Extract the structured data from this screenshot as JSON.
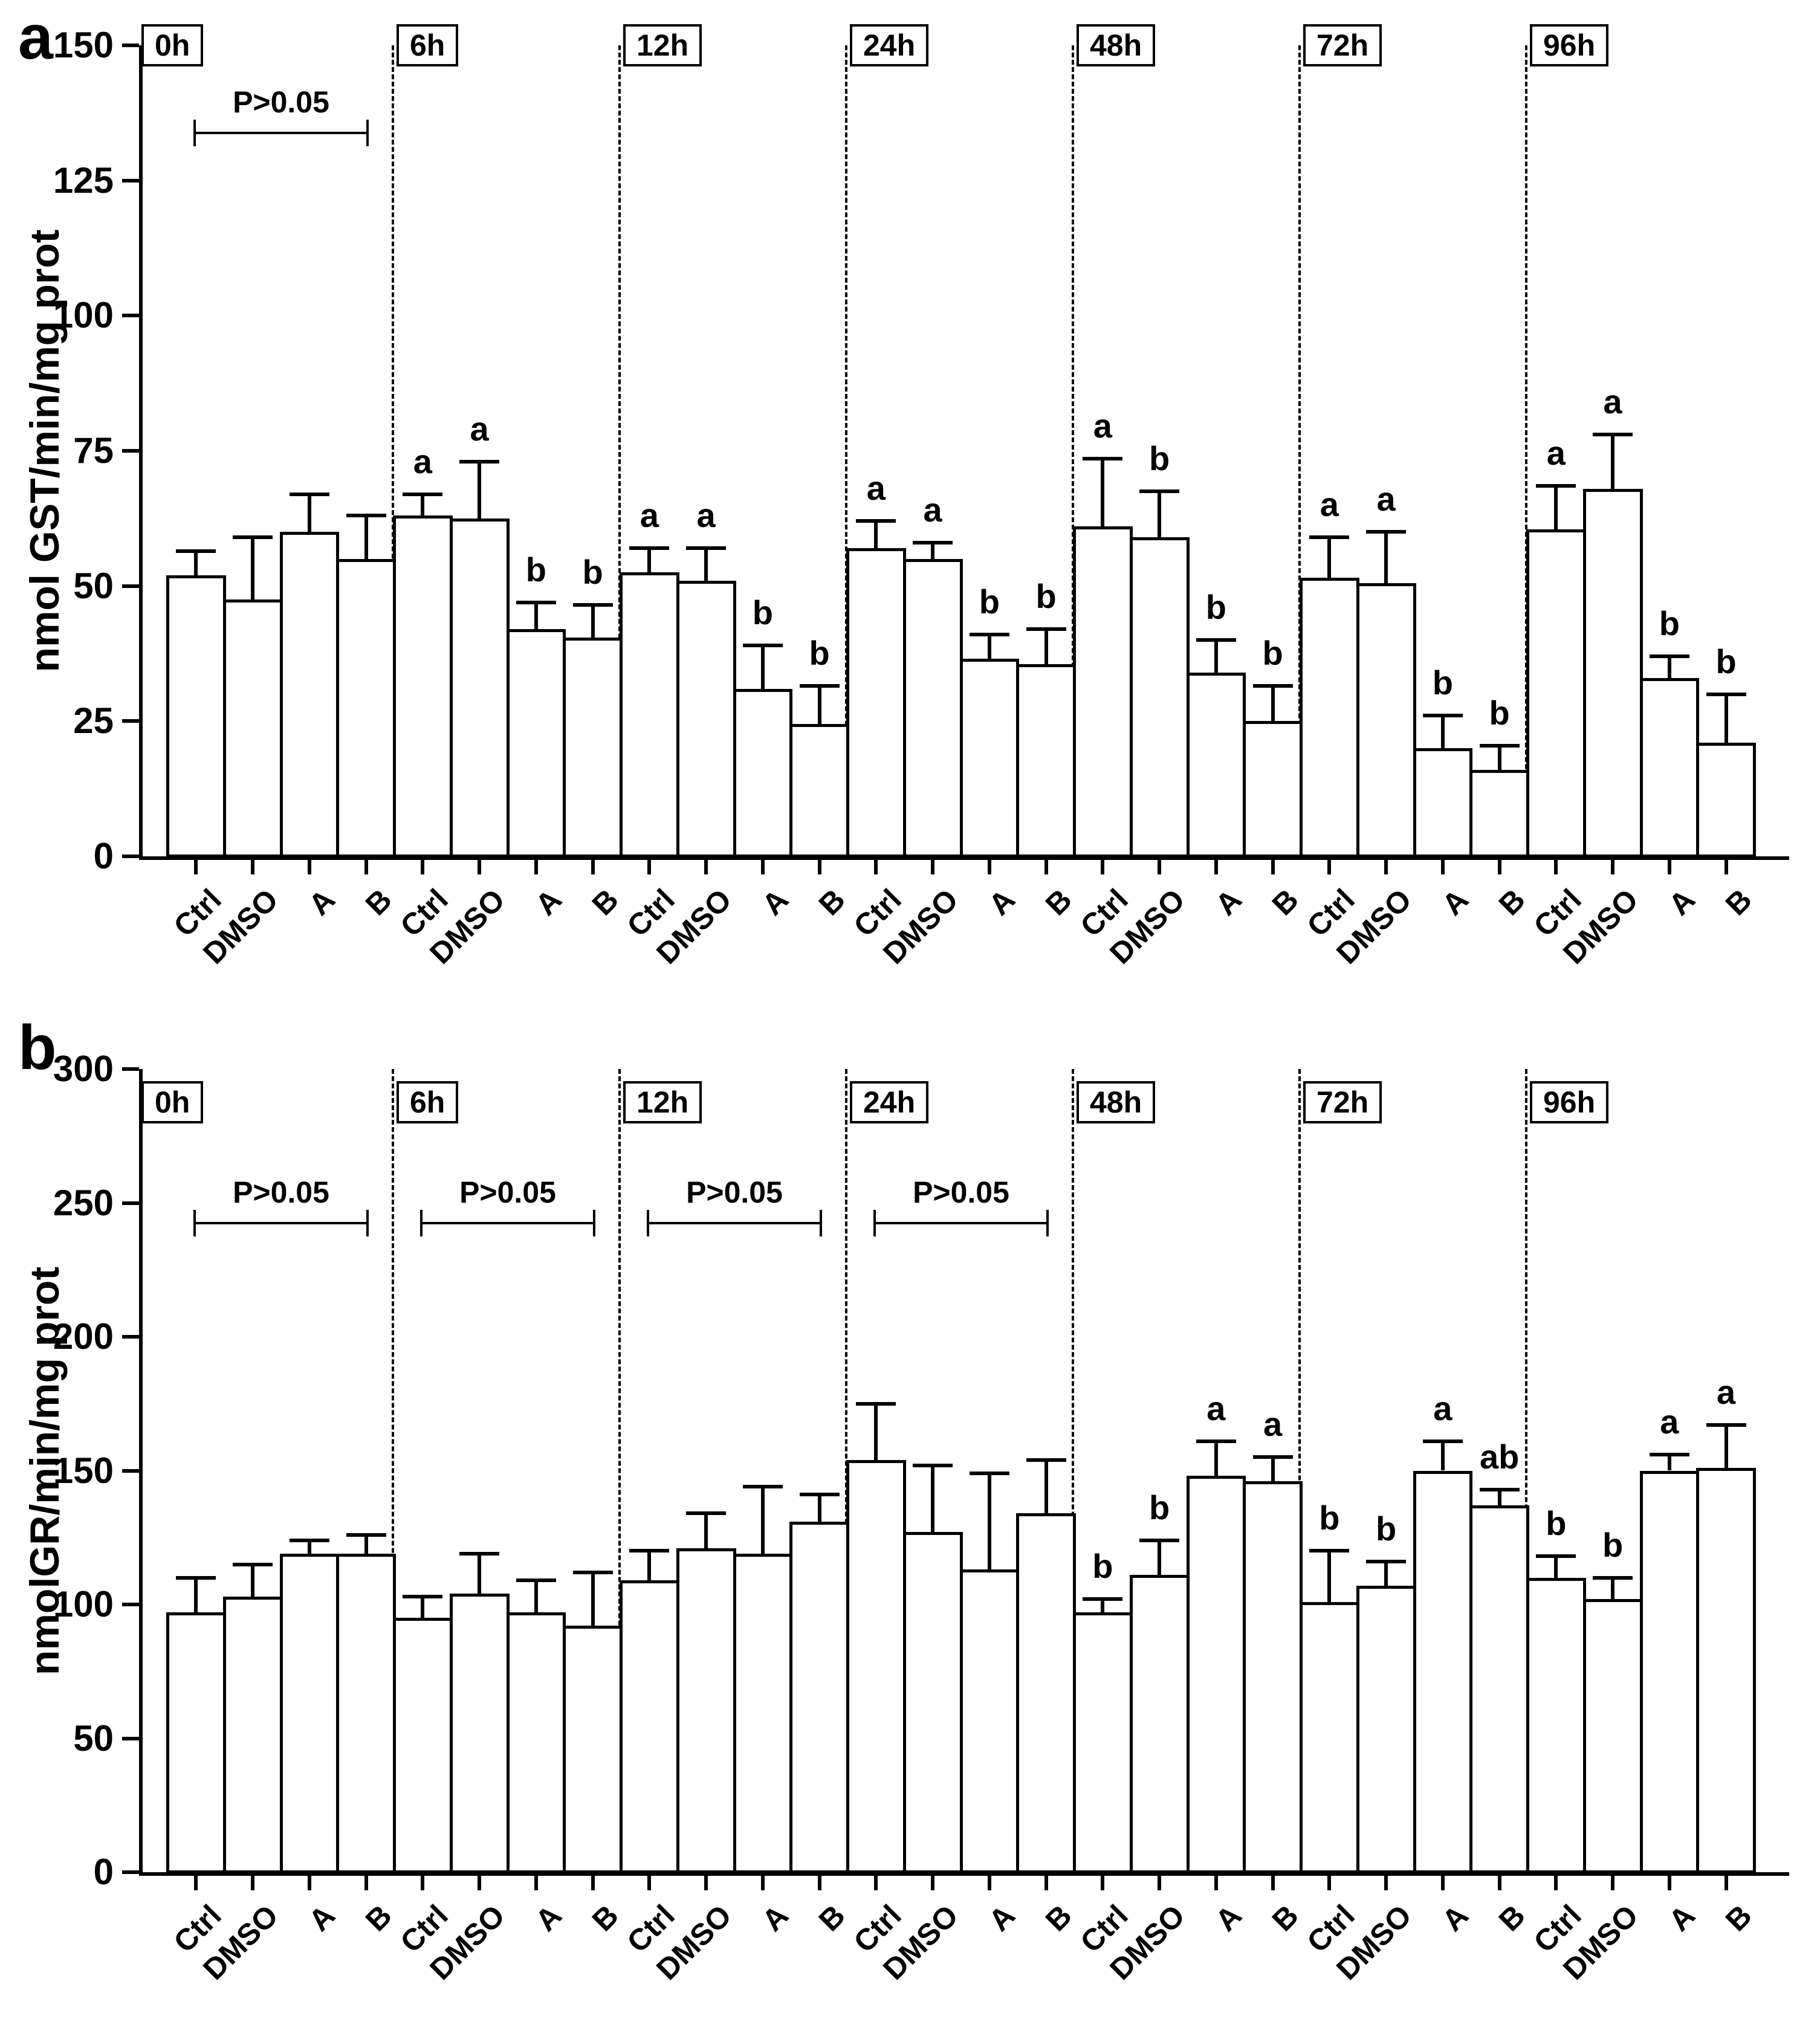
{
  "figure": {
    "panel_a_label": "a",
    "panel_b_label": "b",
    "colors": {
      "bar_fill": "#ffffff",
      "bar_border": "#000000",
      "background": "#ffffff"
    }
  },
  "chart_data": [
    {
      "type": "bar",
      "panel": "a",
      "title": "",
      "xlabel": "",
      "ylabel": "nmol GST/min/mg prot",
      "ylim": [
        0,
        150
      ],
      "yticks": [
        0,
        25,
        50,
        75,
        100,
        125,
        150
      ],
      "grid": false,
      "legend": "none",
      "group_labels": [
        "0h",
        "6h",
        "12h",
        "24h",
        "48h",
        "72h",
        "96h"
      ],
      "bar_labels": [
        "Ctrl",
        "DMSO",
        "A",
        "B"
      ],
      "series_note": "values are group-major: one array of 4 bars (Ctrl, DMSO, A, B) per time group",
      "values": [
        [
          52,
          47.5,
          60,
          55
        ],
        [
          63,
          62.5,
          42,
          40.5
        ],
        [
          52.5,
          51,
          31,
          24.5
        ],
        [
          57,
          55,
          36.5,
          35.5
        ],
        [
          61,
          59,
          34,
          25
        ],
        [
          51.5,
          50.5,
          20,
          16
        ],
        [
          60.5,
          68,
          33,
          21
        ]
      ],
      "errors_upper": [
        [
          4.5,
          11.5,
          7,
          8
        ],
        [
          4,
          10.5,
          5,
          6
        ],
        [
          4.5,
          6,
          8,
          7
        ],
        [
          5,
          3,
          4.5,
          6.5
        ],
        [
          12.5,
          8.5,
          6,
          6.5
        ],
        [
          7.5,
          9.5,
          6,
          4.5
        ],
        [
          8,
          10,
          4,
          9
        ]
      ],
      "letters": [
        [
          "",
          "",
          "",
          ""
        ],
        [
          "a",
          "a",
          "b",
          "b"
        ],
        [
          "a",
          "a",
          "b",
          "b"
        ],
        [
          "a",
          "a",
          "b",
          "b"
        ],
        [
          "a",
          "b",
          "b",
          "b"
        ],
        [
          "a",
          "a",
          "b",
          "b"
        ],
        [
          "a",
          "a",
          "b",
          "b"
        ]
      ],
      "brackets": [
        {
          "group_index": 0,
          "label": "P>0.05",
          "y_value": 134
        }
      ]
    },
    {
      "type": "bar",
      "panel": "b",
      "title": "",
      "xlabel": "",
      "ylabel": "nmolGR/min/mg prot",
      "ylim": [
        0,
        300
      ],
      "yticks": [
        0,
        50,
        100,
        150,
        200,
        250,
        300
      ],
      "grid": false,
      "legend": "none",
      "group_labels": [
        "0h",
        "6h",
        "12h",
        "24h",
        "48h",
        "72h",
        "96h"
      ],
      "bar_labels": [
        "Ctrl",
        "DMSO",
        "A",
        "B"
      ],
      "series_note": "values are group-major: one array of 4 bars (Ctrl, DMSO, A, B) per time group",
      "values": [
        [
          97,
          103,
          119,
          119
        ],
        [
          95,
          104,
          97,
          92
        ],
        [
          109,
          121,
          119,
          131
        ],
        [
          154,
          127,
          113,
          134
        ],
        [
          97,
          111,
          148,
          146
        ],
        [
          101,
          107,
          150,
          137
        ],
        [
          110,
          102,
          150,
          151
        ]
      ],
      "errors_upper": [
        [
          13,
          12,
          5,
          7
        ],
        [
          8,
          15,
          12,
          20
        ],
        [
          11,
          13,
          25,
          10
        ],
        [
          21,
          25,
          36,
          20
        ],
        [
          5,
          13,
          13,
          9
        ],
        [
          19,
          9,
          11,
          6
        ],
        [
          8,
          8,
          6,
          16
        ]
      ],
      "letters": [
        [
          "",
          "",
          "",
          ""
        ],
        [
          "",
          "",
          "",
          ""
        ],
        [
          "",
          "",
          "",
          ""
        ],
        [
          "",
          "",
          "",
          ""
        ],
        [
          "b",
          "b",
          "a",
          "a"
        ],
        [
          "b",
          "b",
          "a",
          "ab"
        ],
        [
          "b",
          "b",
          "a",
          "a"
        ]
      ],
      "brackets": [
        {
          "group_index": 0,
          "label": "P>0.05",
          "y_value": 243
        },
        {
          "group_index": 1,
          "label": "P>0.05",
          "y_value": 243
        },
        {
          "group_index": 2,
          "label": "P>0.05",
          "y_value": 243
        },
        {
          "group_index": 3,
          "label": "P>0.05",
          "y_value": 243
        }
      ]
    }
  ]
}
